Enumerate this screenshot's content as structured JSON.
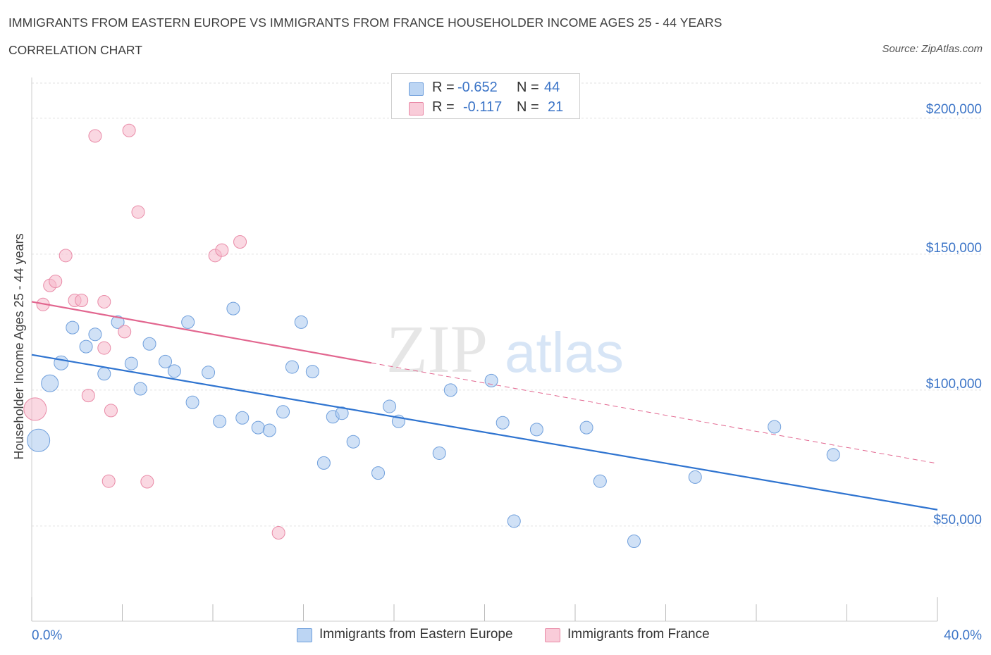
{
  "header": {
    "title": "IMMIGRANTS FROM EASTERN EUROPE VS IMMIGRANTS FROM FRANCE HOUSEHOLDER INCOME AGES 25 - 44 YEARS",
    "subtitle": "CORRELATION CHART",
    "source": "Source: ZipAtlas.com"
  },
  "legend": {
    "rows": [
      {
        "r_label": "R =",
        "r_value": "-0.652",
        "n_label": "N =",
        "n_value": "44"
      },
      {
        "r_label": "R =",
        "r_value": "-0.117",
        "n_label": "N =",
        "n_value": "21"
      }
    ]
  },
  "bottom_legend": {
    "series_a": "Immigrants from Eastern Europe",
    "series_b": "Immigrants from France"
  },
  "watermark": {
    "zip": "ZIP",
    "atlas": "atlas"
  },
  "colors": {
    "blue_fill": "#a9c9ef",
    "blue_stroke": "#6f9fdc",
    "blue_line": "#2f74d0",
    "pink_fill": "#f6b8ca",
    "pink_stroke": "#e98aa7",
    "pink_line": "#e2668f",
    "tick_text": "#3b74c7",
    "grid": "#e2e2e2"
  },
  "chart_data": {
    "type": "scatter",
    "title": "IMMIGRANTS FROM EASTERN EUROPE VS IMMIGRANTS FROM FRANCE HOUSEHOLDER INCOME AGES 25 - 44 YEARS",
    "xlabel": "",
    "ylabel": "Householder Income Ages 25 - 44 years",
    "xlim": [
      0,
      40
    ],
    "ylim": [
      15000,
      215000
    ],
    "x_tick_labels": [
      "0.0%",
      "40.0%"
    ],
    "y_ticks": [
      50000,
      100000,
      150000,
      200000
    ],
    "y_tick_labels": [
      "$50,000",
      "$100,000",
      "$150,000",
      "$200,000"
    ],
    "grid": true,
    "legend_position": "top-center",
    "series": [
      {
        "name": "Immigrants from Eastern Europe",
        "color": "#a9c9ef",
        "points": [
          [
            0.3,
            81500,
            16
          ],
          [
            0.8,
            102500,
            12
          ],
          [
            1.3,
            110000,
            10
          ],
          [
            1.8,
            123000,
            9
          ],
          [
            2.4,
            116000,
            9
          ],
          [
            2.8,
            120500,
            9
          ],
          [
            3.2,
            106000,
            9
          ],
          [
            3.8,
            125000,
            9
          ],
          [
            4.4,
            109800,
            9
          ],
          [
            4.8,
            100500,
            9
          ],
          [
            5.2,
            117000,
            9
          ],
          [
            5.9,
            110500,
            9
          ],
          [
            6.3,
            107000,
            9
          ],
          [
            6.9,
            125000,
            9
          ],
          [
            7.1,
            95500,
            9
          ],
          [
            7.8,
            106500,
            9
          ],
          [
            8.3,
            88500,
            9
          ],
          [
            8.9,
            130000,
            9
          ],
          [
            9.3,
            89800,
            9
          ],
          [
            10.0,
            86200,
            9
          ],
          [
            10.5,
            85200,
            9
          ],
          [
            11.1,
            92000,
            9
          ],
          [
            11.5,
            108500,
            9
          ],
          [
            11.9,
            125000,
            9
          ],
          [
            12.4,
            106800,
            9
          ],
          [
            12.9,
            73200,
            9
          ],
          [
            13.3,
            90200,
            9
          ],
          [
            13.7,
            91500,
            9
          ],
          [
            14.2,
            81000,
            9
          ],
          [
            15.3,
            69500,
            9
          ],
          [
            15.8,
            94000,
            9
          ],
          [
            16.2,
            88500,
            9
          ],
          [
            18.0,
            76800,
            9
          ],
          [
            18.5,
            100000,
            9
          ],
          [
            20.3,
            103500,
            9
          ],
          [
            20.8,
            88000,
            9
          ],
          [
            21.3,
            51800,
            9
          ],
          [
            22.3,
            85500,
            9
          ],
          [
            24.5,
            86200,
            9
          ],
          [
            25.1,
            66500,
            9
          ],
          [
            26.6,
            44400,
            9
          ],
          [
            29.3,
            68000,
            9
          ],
          [
            32.8,
            86500,
            9
          ],
          [
            35.4,
            76200,
            9
          ]
        ]
      },
      {
        "name": "Immigrants from France",
        "color": "#f6b8ca",
        "points": [
          [
            0.15,
            93000,
            16
          ],
          [
            0.5,
            131500,
            9
          ],
          [
            0.8,
            138500,
            9
          ],
          [
            1.05,
            140000,
            9
          ],
          [
            1.5,
            149500,
            9
          ],
          [
            1.9,
            133000,
            9
          ],
          [
            2.2,
            133000,
            9
          ],
          [
            2.5,
            98000,
            9
          ],
          [
            2.8,
            193500,
            9
          ],
          [
            3.2,
            132500,
            9
          ],
          [
            3.2,
            115500,
            9
          ],
          [
            3.4,
            66500,
            9
          ],
          [
            3.5,
            92500,
            9
          ],
          [
            4.1,
            121500,
            9
          ],
          [
            4.3,
            195500,
            9
          ],
          [
            4.7,
            165500,
            9
          ],
          [
            5.1,
            66300,
            9
          ],
          [
            8.1,
            149500,
            9
          ],
          [
            8.4,
            151500,
            9
          ],
          [
            9.2,
            154500,
            9
          ],
          [
            10.9,
            47500,
            9
          ]
        ]
      }
    ],
    "trendlines": [
      {
        "series": "Immigrants from Eastern Europe",
        "x": [
          0,
          40
        ],
        "y": [
          113000,
          56000
        ],
        "style": "solid"
      },
      {
        "series": "Immigrants from France",
        "x": [
          0,
          15.0
        ],
        "y": [
          132500,
          110000
        ],
        "style": "solid"
      },
      {
        "series": "Immigrants from France",
        "x": [
          15.0,
          40
        ],
        "y": [
          110000,
          73000
        ],
        "style": "dashed"
      }
    ]
  }
}
